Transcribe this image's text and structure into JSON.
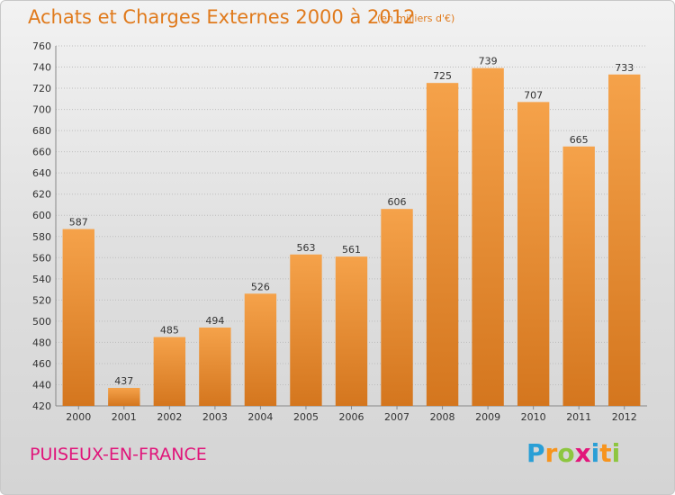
{
  "header": {
    "title": "Achats et Charges Externes 2000 à 2012",
    "subtitle": "(en milliers d'€)"
  },
  "footer": {
    "city": "PUISEUX-EN-FRANCE",
    "brand": "Proxiti",
    "brand_letters": [
      "P",
      "r",
      "o",
      "x",
      "i",
      "t",
      "i"
    ],
    "brand_colors": [
      "#2a9fd6",
      "#f7941d",
      "#8dc63f",
      "#e2157a",
      "#2a9fd6",
      "#f7941d",
      "#8dc63f"
    ]
  },
  "colors": {
    "accent": "#e07a1c",
    "bar_top": "#f5a24a",
    "bar_bottom": "#d4761e",
    "city": "#e0157a"
  },
  "chart_data": {
    "type": "bar",
    "categories": [
      "2000",
      "2001",
      "2002",
      "2003",
      "2004",
      "2005",
      "2006",
      "2007",
      "2008",
      "2009",
      "2010",
      "2011",
      "2012"
    ],
    "values": [
      587,
      437,
      485,
      494,
      526,
      563,
      561,
      606,
      725,
      739,
      707,
      665,
      733
    ],
    "title": "Achats et Charges Externes 2000 à 2012",
    "subtitle": "(en milliers d'€)",
    "xlabel": "",
    "ylabel": "",
    "ylim": [
      420,
      760
    ],
    "yticks": [
      420,
      440,
      460,
      480,
      500,
      520,
      540,
      560,
      580,
      600,
      620,
      640,
      660,
      680,
      700,
      720,
      740,
      760
    ],
    "grid": true,
    "legend": "none"
  }
}
